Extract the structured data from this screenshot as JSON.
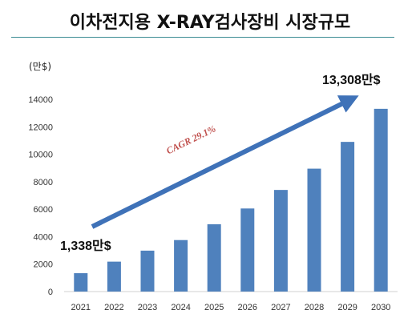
{
  "title": "이차전지용 X-RAY검사장비 시장규모",
  "unit_label": "(만$)",
  "colors": {
    "bar": "#4f81bd",
    "arrow": "#3f72b8",
    "cagr_text": "#c0504d",
    "title_rule": "#3b8b93"
  },
  "chart_data": {
    "type": "bar",
    "title": "이차전지용 X-RAY검사장비 시장규모",
    "ylabel": "(만$)",
    "xlabel": "",
    "categories": [
      "2021",
      "2022",
      "2023",
      "2024",
      "2025",
      "2026",
      "2027",
      "2028",
      "2029",
      "2030"
    ],
    "values": [
      1338,
      2180,
      2980,
      3750,
      4900,
      6050,
      7400,
      8950,
      10900,
      13308
    ],
    "ylim": [
      0,
      14000
    ],
    "yticks": [
      0,
      2000,
      4000,
      6000,
      8000,
      10000,
      12000,
      14000
    ],
    "grid": false,
    "legend": "none",
    "annotations": {
      "start_label": "1,338만$",
      "end_label": "13,308만$",
      "cagr_label": "CAGR 29.1%"
    }
  }
}
